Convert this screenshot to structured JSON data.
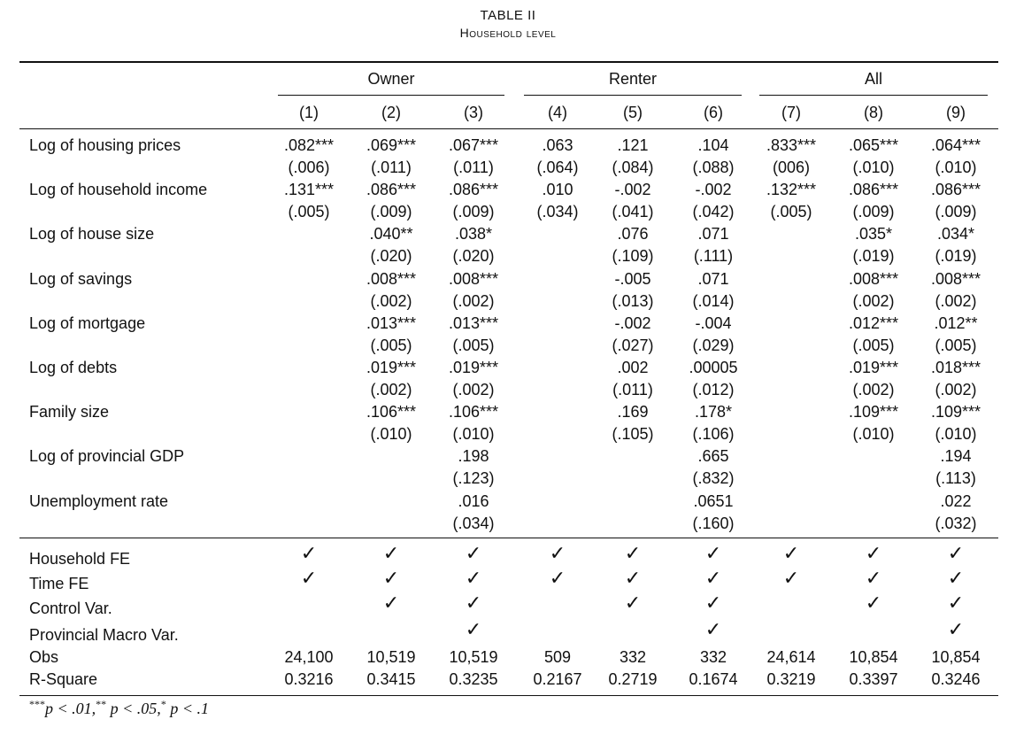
{
  "table": {
    "title": "TABLE II",
    "subtitle": "Household level",
    "groups": [
      "Owner",
      "Renter",
      "All"
    ],
    "columns": [
      "(1)",
      "(2)",
      "(3)",
      "(4)",
      "(5)",
      "(6)",
      "(7)",
      "(8)",
      "(9)"
    ],
    "rows": [
      {
        "label": "Log of housing prices",
        "coef": [
          ".082***",
          ".069***",
          ".067***",
          ".063",
          ".121",
          ".104",
          ".833***",
          ".065***",
          ".064***"
        ],
        "se": [
          "(.006)",
          "(.011)",
          "(.011)",
          "(.064)",
          "(.084)",
          "(.088)",
          "(006)",
          "(.010)",
          "(.010)"
        ]
      },
      {
        "label": "Log of household income",
        "coef": [
          ".131***",
          ".086***",
          ".086***",
          ".010",
          "-.002",
          "-.002",
          ".132***",
          ".086***",
          ".086***"
        ],
        "se": [
          "(.005)",
          "(.009)",
          "(.009)",
          "(.034)",
          "(.041)",
          "(.042)",
          "(.005)",
          "(.009)",
          "(.009)"
        ]
      },
      {
        "label": "Log of house size",
        "coef": [
          "",
          ".040**",
          ".038*",
          "",
          ".076",
          ".071",
          "",
          ".035*",
          ".034*"
        ],
        "se": [
          "",
          "(.020)",
          "(.020)",
          "",
          "(.109)",
          "(.111)",
          "",
          "(.019)",
          "(.019)"
        ]
      },
      {
        "label": "Log of savings",
        "coef": [
          "",
          ".008***",
          ".008***",
          "",
          "-.005",
          ".071",
          "",
          ".008***",
          ".008***"
        ],
        "se": [
          "",
          "(.002)",
          "(.002)",
          "",
          "(.013)",
          "(.014)",
          "",
          "(.002)",
          "(.002)"
        ]
      },
      {
        "label": "Log of mortgage",
        "coef": [
          "",
          ".013***",
          ".013***",
          "",
          "-.002",
          "-.004",
          "",
          ".012***",
          ".012**"
        ],
        "se": [
          "",
          "(.005)",
          "(.005)",
          "",
          "(.027)",
          "(.029)",
          "",
          "(.005)",
          "(.005)"
        ]
      },
      {
        "label": "Log of debts",
        "coef": [
          "",
          ".019***",
          ".019***",
          "",
          ".002",
          ".00005",
          "",
          ".019***",
          ".018***"
        ],
        "se": [
          "",
          "(.002)",
          "(.002)",
          "",
          "(.011)",
          "(.012)",
          "",
          "(.002)",
          "(.002)"
        ]
      },
      {
        "label": "Family size",
        "coef": [
          "",
          ".106***",
          ".106***",
          "",
          ".169",
          ".178*",
          "",
          ".109***",
          ".109***"
        ],
        "se": [
          "",
          "(.010)",
          "(.010)",
          "",
          "(.105)",
          "(.106)",
          "",
          "(.010)",
          "(.010)"
        ]
      },
      {
        "label": "Log of provincial GDP",
        "coef": [
          "",
          "",
          ".198",
          "",
          "",
          ".665",
          "",
          "",
          ".194"
        ],
        "se": [
          "",
          "",
          "(.123)",
          "",
          "",
          "(.832)",
          "",
          "",
          "(.113)"
        ]
      },
      {
        "label": "Unemployment rate",
        "coef": [
          "",
          "",
          ".016",
          "",
          "",
          ".0651",
          "",
          "",
          ".022"
        ],
        "se": [
          "",
          "",
          "(.034)",
          "",
          "",
          "(.160)",
          "",
          "",
          "(.032)"
        ]
      }
    ],
    "check_symbol": "✓",
    "indicators": [
      {
        "label": "Household FE",
        "checks": [
          true,
          true,
          true,
          true,
          true,
          true,
          true,
          true,
          true
        ]
      },
      {
        "label": "Time FE",
        "checks": [
          true,
          true,
          true,
          true,
          true,
          true,
          true,
          true,
          true
        ]
      },
      {
        "label": "Control Var.",
        "checks": [
          false,
          true,
          true,
          false,
          true,
          true,
          false,
          true,
          true
        ]
      },
      {
        "label": "Provincial Macro Var.",
        "checks": [
          false,
          false,
          true,
          false,
          false,
          true,
          false,
          false,
          true
        ]
      }
    ],
    "stats": [
      {
        "label": "Obs",
        "values": [
          "24,100",
          "10,519",
          "10,519",
          "509",
          "332",
          "332",
          "24,614",
          "10,854",
          "10,854"
        ]
      },
      {
        "label": "R-Square",
        "values": [
          "0.3216",
          "0.3415",
          "0.3235",
          "0.2167",
          "0.2719",
          "0.1674",
          "0.3219",
          "0.3397",
          "0.3246"
        ]
      }
    ],
    "footnote": {
      "s1": "***",
      "t1": "p < .01,",
      "s2": "**",
      "t2": " p < .05,",
      "s3": "*",
      "t3": " p < .1"
    }
  }
}
